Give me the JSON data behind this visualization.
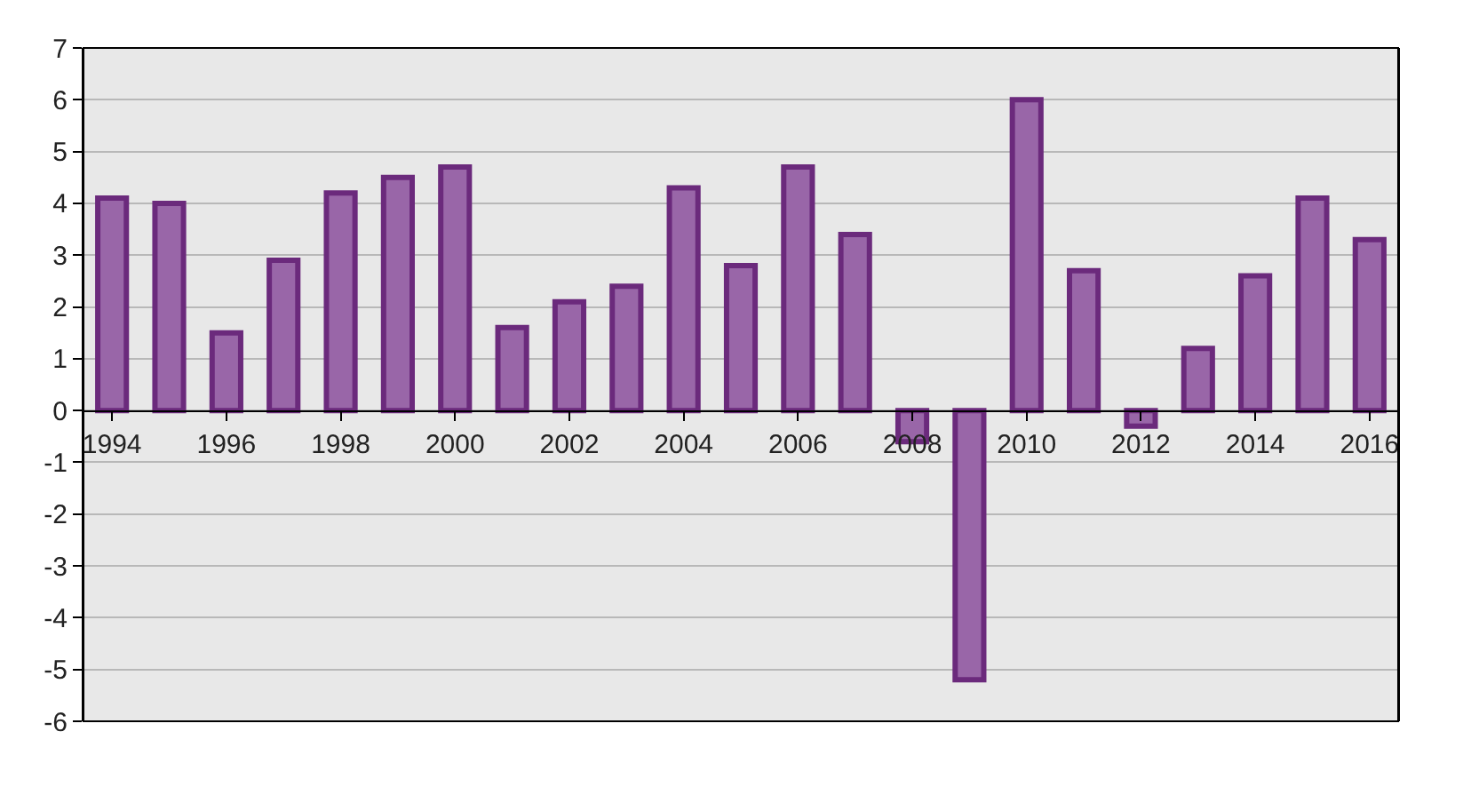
{
  "chart_data": {
    "type": "bar",
    "categories": [
      "1994",
      null,
      "1996",
      null,
      "1998",
      null,
      "2000",
      null,
      "2002",
      null,
      "2004",
      null,
      "2006",
      null,
      "2008",
      null,
      "2010",
      null,
      "2012",
      null,
      "2014",
      null,
      "2016"
    ],
    "values": [
      4.1,
      4.0,
      1.5,
      2.9,
      4.2,
      4.5,
      4.7,
      1.6,
      2.1,
      2.4,
      4.3,
      2.8,
      4.7,
      3.4,
      -0.6,
      -5.2,
      6.0,
      2.7,
      -0.3,
      1.2,
      2.6,
      4.1,
      3.3
    ],
    "color": "#9966a8",
    "ylim": [
      -6,
      7
    ],
    "yticks": [
      -6,
      -5,
      -4,
      -3,
      -2,
      -1,
      0,
      1,
      2,
      3,
      4,
      5,
      6,
      7
    ],
    "grid": "y"
  }
}
